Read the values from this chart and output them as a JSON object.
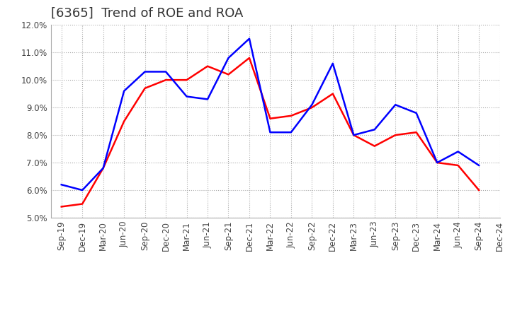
{
  "title": "[6365]  Trend of ROE and ROA",
  "x_labels": [
    "Sep-19",
    "Dec-19",
    "Mar-20",
    "Jun-20",
    "Sep-20",
    "Dec-20",
    "Mar-21",
    "Jun-21",
    "Sep-21",
    "Dec-21",
    "Mar-22",
    "Jun-22",
    "Sep-22",
    "Dec-22",
    "Mar-23",
    "Jun-23",
    "Sep-23",
    "Dec-23",
    "Mar-24",
    "Jun-24",
    "Sep-24",
    "Dec-24"
  ],
  "roe": [
    5.4,
    5.5,
    6.8,
    8.5,
    9.7,
    10.0,
    10.0,
    10.5,
    10.2,
    10.8,
    8.6,
    8.7,
    9.0,
    9.5,
    8.0,
    7.6,
    8.0,
    8.1,
    7.0,
    6.9,
    6.0,
    null
  ],
  "roa": [
    6.2,
    6.0,
    6.8,
    9.6,
    10.3,
    10.3,
    9.4,
    9.3,
    10.8,
    11.5,
    8.1,
    8.1,
    9.1,
    10.6,
    8.0,
    8.2,
    9.1,
    8.8,
    7.0,
    7.4,
    6.9,
    null
  ],
  "ylim": [
    5.0,
    12.0
  ],
  "yticks": [
    5.0,
    6.0,
    7.0,
    8.0,
    9.0,
    10.0,
    11.0,
    12.0
  ],
  "roe_color": "#ff0000",
  "roa_color": "#0000ff",
  "background_color": "#ffffff",
  "grid_color": "#aaaaaa",
  "title_fontsize": 13,
  "tick_fontsize": 8.5,
  "legend_fontsize": 9.5
}
